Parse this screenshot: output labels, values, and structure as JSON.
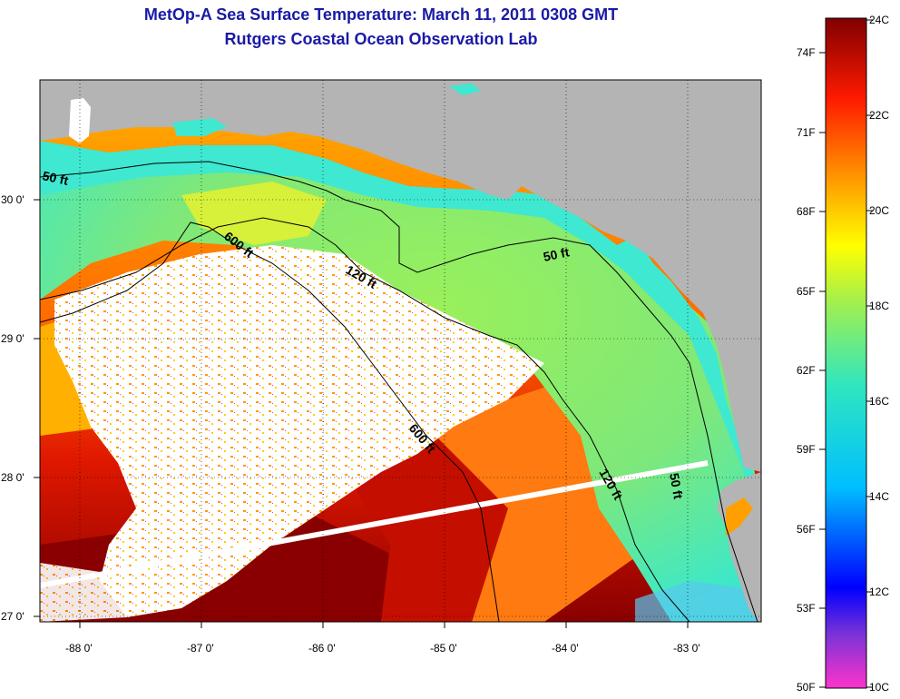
{
  "title": "MetOp-A Sea Surface Temperature:  March 11, 2011 0308 GMT",
  "subtitle": "Rutgers Coastal Ocean Observation Lab",
  "map": {
    "lon_ticks": [
      "-88 0'",
      "-87 0'",
      "-86 0'",
      "-85 0'",
      "-84 0'",
      "-83 0'"
    ],
    "lat_ticks": [
      "30 0'",
      "29 0'",
      "28 0'",
      "27 0'"
    ],
    "contour_labels": [
      "50 ft",
      "600 ft",
      "120 ft",
      "50 ft",
      "600 ft",
      "120 ft",
      "50 ft"
    ],
    "land_color": "#b4b4b4",
    "no_data_color": "#ffffff",
    "satellite_track_color": "#ffffff"
  },
  "colorbar": {
    "celsius_labels": [
      "24C",
      "22C",
      "20C",
      "18C",
      "16C",
      "14C",
      "12C",
      "10C"
    ],
    "fahrenheit_labels": [
      "74F",
      "71F",
      "68F",
      "65F",
      "62F",
      "59F",
      "56F",
      "53F",
      "50F"
    ],
    "min_c": 10,
    "max_c": 24
  }
}
